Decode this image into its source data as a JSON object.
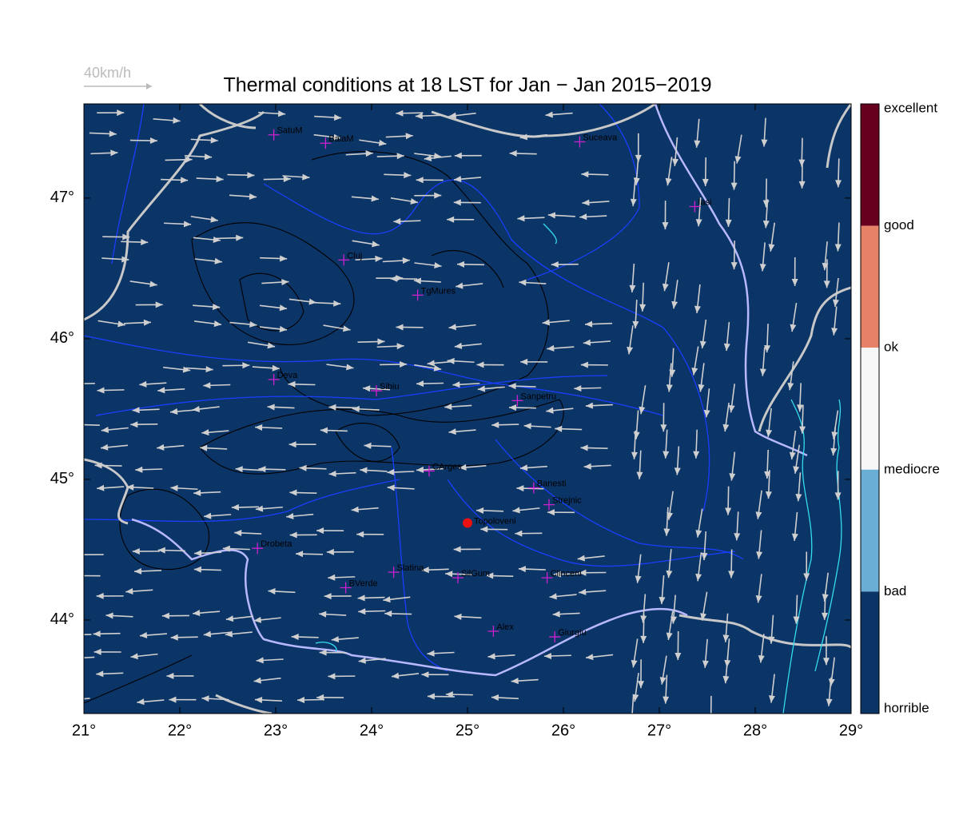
{
  "map": {
    "title": "Thermal conditions at 18 LST for Jan − Jan  2015−2019",
    "scale_label": "40km/h",
    "xlim": [
      21,
      29.0
    ],
    "ylim": [
      43.335,
      47.67
    ],
    "xticks": [
      {
        "value": 21,
        "label": "21°"
      },
      {
        "value": 22,
        "label": "22°"
      },
      {
        "value": 23,
        "label": "23°"
      },
      {
        "value": 24,
        "label": "24°"
      },
      {
        "value": 25,
        "label": "25°"
      },
      {
        "value": 26,
        "label": "26°"
      },
      {
        "value": 27,
        "label": "27°"
      },
      {
        "value": 28,
        "label": "28°"
      },
      {
        "value": 29,
        "label": "29°"
      }
    ],
    "yticks": [
      {
        "value": 44,
        "label": "44°"
      },
      {
        "value": 45,
        "label": "45°"
      },
      {
        "value": 46,
        "label": "46°"
      },
      {
        "value": 47,
        "label": "47°"
      }
    ],
    "background_color": "#0b3467",
    "stations": [
      {
        "name": "SatuM",
        "lon": 22.98,
        "lat": 47.45
      },
      {
        "name": "BaiaM",
        "lon": 23.52,
        "lat": 47.39
      },
      {
        "name": "Suceava",
        "lon": 26.17,
        "lat": 47.4
      },
      {
        "name": "Iasi",
        "lon": 27.37,
        "lat": 46.94
      },
      {
        "name": "Cluj",
        "lon": 23.71,
        "lat": 46.56
      },
      {
        "name": "TgMures",
        "lon": 24.48,
        "lat": 46.31
      },
      {
        "name": "Deva",
        "lon": 22.98,
        "lat": 45.71
      },
      {
        "name": "Sibiu",
        "lon": 24.05,
        "lat": 45.63
      },
      {
        "name": "Sanpetru",
        "lon": 25.52,
        "lat": 45.56
      },
      {
        "name": "CArges",
        "lon": 24.6,
        "lat": 45.06
      },
      {
        "name": "Banesti",
        "lon": 25.69,
        "lat": 44.94
      },
      {
        "name": "Strejnic",
        "lon": 25.85,
        "lat": 44.82
      },
      {
        "name": "Drobeta",
        "lon": 22.81,
        "lat": 44.51
      },
      {
        "name": "Slatina",
        "lon": 24.23,
        "lat": 44.34
      },
      {
        "name": "SilGum",
        "lon": 24.9,
        "lat": 44.3
      },
      {
        "name": "Clinceni",
        "lon": 25.83,
        "lat": 44.3
      },
      {
        "name": "BVerde",
        "lon": 23.73,
        "lat": 44.23
      },
      {
        "name": "Alex",
        "lon": 25.27,
        "lat": 43.92
      },
      {
        "name": "Giurgiu",
        "lon": 25.91,
        "lat": 43.88
      }
    ],
    "station_color": "#d020d0",
    "location": {
      "name": "Topoloveni",
      "lon": 25.0,
      "lat": 44.69,
      "color": "#ee1111"
    },
    "colorbar": {
      "labels": [
        "excellent",
        "good",
        "ok",
        "mediocre",
        "bad",
        "horrible"
      ],
      "colors": [
        "#67001f",
        "#e58267",
        "#f7f7f7",
        "#6aaed6",
        "#0b3467"
      ]
    }
  }
}
